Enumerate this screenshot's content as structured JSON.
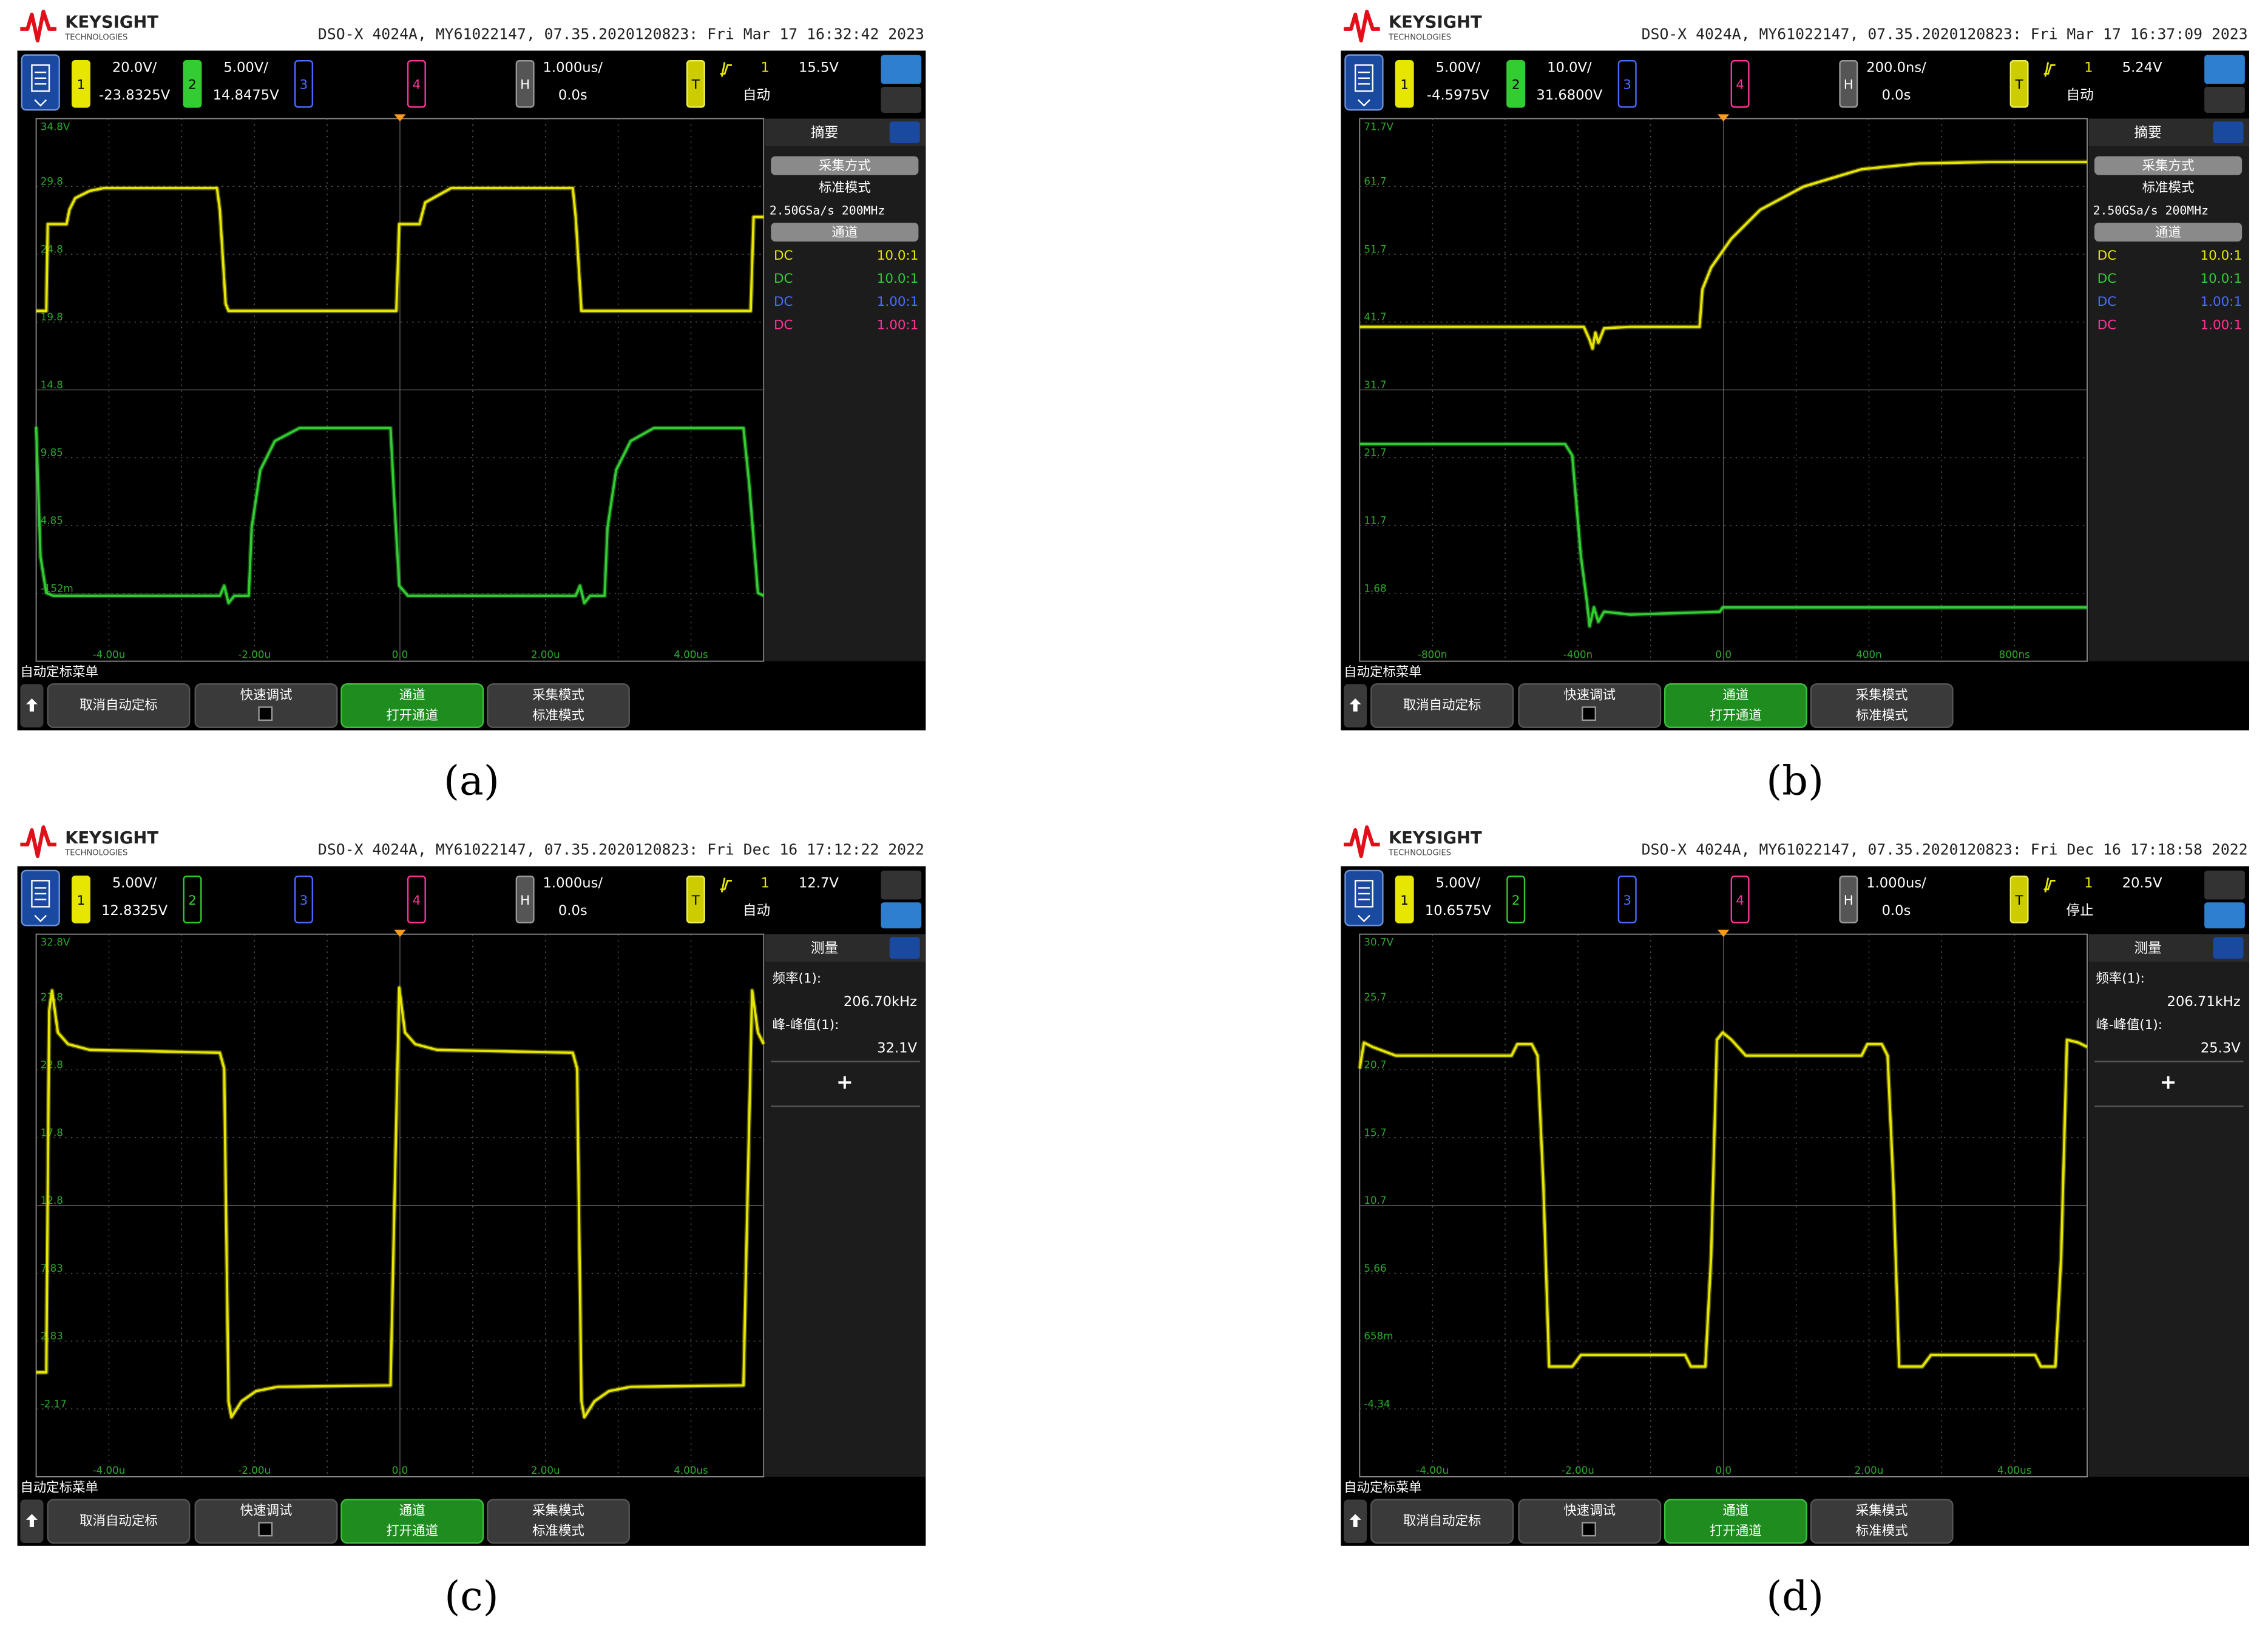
{
  "common": {
    "brand": "KEYSIGHT",
    "brand_sub": "TECHNOLOGIES",
    "menu_title": "自动定标菜单",
    "softkeys": [
      {
        "label": "取消自动定标"
      },
      {
        "label": "快速调试"
      },
      {
        "label": "通道",
        "value": "打开通道"
      },
      {
        "label": "采集模式",
        "value": "标准模式"
      }
    ]
  },
  "panels": [
    {
      "label": "(a)",
      "header": "DSO-X 4024A, MY61022147, 07.35.2020120823: Fri Mar 17 16:32:42 2023",
      "channels": [
        {
          "num": "1",
          "scale": "20.0V/",
          "offset": "-23.8325V"
        },
        {
          "num": "2",
          "scale": "5.00V/",
          "offset": "14.8475V"
        },
        {
          "num": "3"
        },
        {
          "num": "4"
        }
      ],
      "horizontal": {
        "num": "H",
        "scale": "1.000us/",
        "delay": "0.0s"
      },
      "trigger": {
        "num": "T",
        "source": "1",
        "level": "15.5V",
        "mode": "自动"
      },
      "y_labels": [
        "34.8V",
        "29.8",
        "24.8",
        "19.8",
        "14.8",
        "9.85",
        "4.85",
        "-152m"
      ],
      "x_labels": [
        "-4.00u",
        "-2.00u",
        "0.0",
        "2.00u",
        "4.00us"
      ],
      "sidebar": {
        "title": "摘要",
        "acq_button": "采集方式",
        "acq_mode": "标准模式",
        "rate": "2.50GSa/s  200MHz",
        "ch_button": "通道",
        "probes": [
          {
            "coupling": "DC",
            "ratio": "10.0:1"
          },
          {
            "coupling": "DC",
            "ratio": "10.0:1"
          },
          {
            "coupling": "DC",
            "ratio": "1.00:1"
          },
          {
            "coupling": "DC",
            "ratio": "1.00:1"
          }
        ]
      }
    },
    {
      "label": "(b)",
      "header": "DSO-X 4024A, MY61022147, 07.35.2020120823: Fri Mar 17 16:37:09 2023",
      "channels": [
        {
          "num": "1",
          "scale": "5.00V/",
          "offset": "-4.5975V"
        },
        {
          "num": "2",
          "scale": "10.0V/",
          "offset": "31.6800V"
        },
        {
          "num": "3"
        },
        {
          "num": "4"
        }
      ],
      "horizontal": {
        "num": "H",
        "scale": "200.0ns/",
        "delay": "0.0s"
      },
      "trigger": {
        "num": "T",
        "source": "1",
        "level": "5.24V",
        "mode": "自动"
      },
      "y_labels": [
        "71.7V",
        "61.7",
        "51.7",
        "41.7",
        "31.7",
        "21.7",
        "11.7",
        "1.68"
      ],
      "x_labels": [
        "-800n",
        "-400n",
        "0.0",
        "400n",
        "800ns"
      ],
      "sidebar": {
        "title": "摘要",
        "acq_button": "采集方式",
        "acq_mode": "标准模式",
        "rate": "2.50GSa/s  200MHz",
        "ch_button": "通道",
        "probes": [
          {
            "coupling": "DC",
            "ratio": "10.0:1"
          },
          {
            "coupling": "DC",
            "ratio": "10.0:1"
          },
          {
            "coupling": "DC",
            "ratio": "1.00:1"
          },
          {
            "coupling": "DC",
            "ratio": "1.00:1"
          }
        ]
      }
    },
    {
      "label": "(c)",
      "header": "DSO-X 4024A, MY61022147, 07.35.2020120823: Fri Dec 16 17:12:22 2022",
      "channels": [
        {
          "num": "1",
          "scale": "5.00V/",
          "offset": "12.8325V"
        },
        {
          "num": "2"
        },
        {
          "num": "3"
        },
        {
          "num": "4"
        }
      ],
      "horizontal": {
        "num": "H",
        "scale": "1.000us/",
        "delay": "0.0s"
      },
      "trigger": {
        "num": "T",
        "source": "1",
        "level": "12.7V",
        "mode": "自动"
      },
      "y_labels": [
        "32.8V",
        "27.8",
        "22.8",
        "17.8",
        "12.8",
        "7.83",
        "2.83",
        "-2.17"
      ],
      "x_labels": [
        "-4.00u",
        "-2.00u",
        "0.0",
        "2.00u",
        "4.00us"
      ],
      "sidebar": {
        "title": "测量",
        "measurements": [
          {
            "name": "频率(1):",
            "value": "206.70kHz"
          },
          {
            "name": "峰-峰值(1):",
            "value": "32.1V"
          }
        ],
        "add": "+"
      }
    },
    {
      "label": "(d)",
      "header": "DSO-X 4024A, MY61022147, 07.35.2020120823: Fri Dec 16 17:18:58 2022",
      "channels": [
        {
          "num": "1",
          "scale": "5.00V/",
          "offset": "10.6575V"
        },
        {
          "num": "2"
        },
        {
          "num": "3"
        },
        {
          "num": "4"
        }
      ],
      "horizontal": {
        "num": "H",
        "scale": "1.000us/",
        "delay": "0.0s"
      },
      "trigger": {
        "num": "T",
        "source": "1",
        "level": "20.5V",
        "mode": "停止"
      },
      "y_labels": [
        "30.7V",
        "25.7",
        "20.7",
        "15.7",
        "10.7",
        "5.66",
        "658m",
        "-4.34"
      ],
      "x_labels": [
        "-4.00u",
        "-2.00u",
        "0.0",
        "2.00u",
        "4.00us"
      ],
      "sidebar": {
        "title": "测量",
        "measurements": [
          {
            "name": "频率(1):",
            "value": "206.71kHz"
          },
          {
            "name": "峰-峰值(1):",
            "value": "25.3V"
          }
        ],
        "add": "+"
      }
    }
  ]
}
